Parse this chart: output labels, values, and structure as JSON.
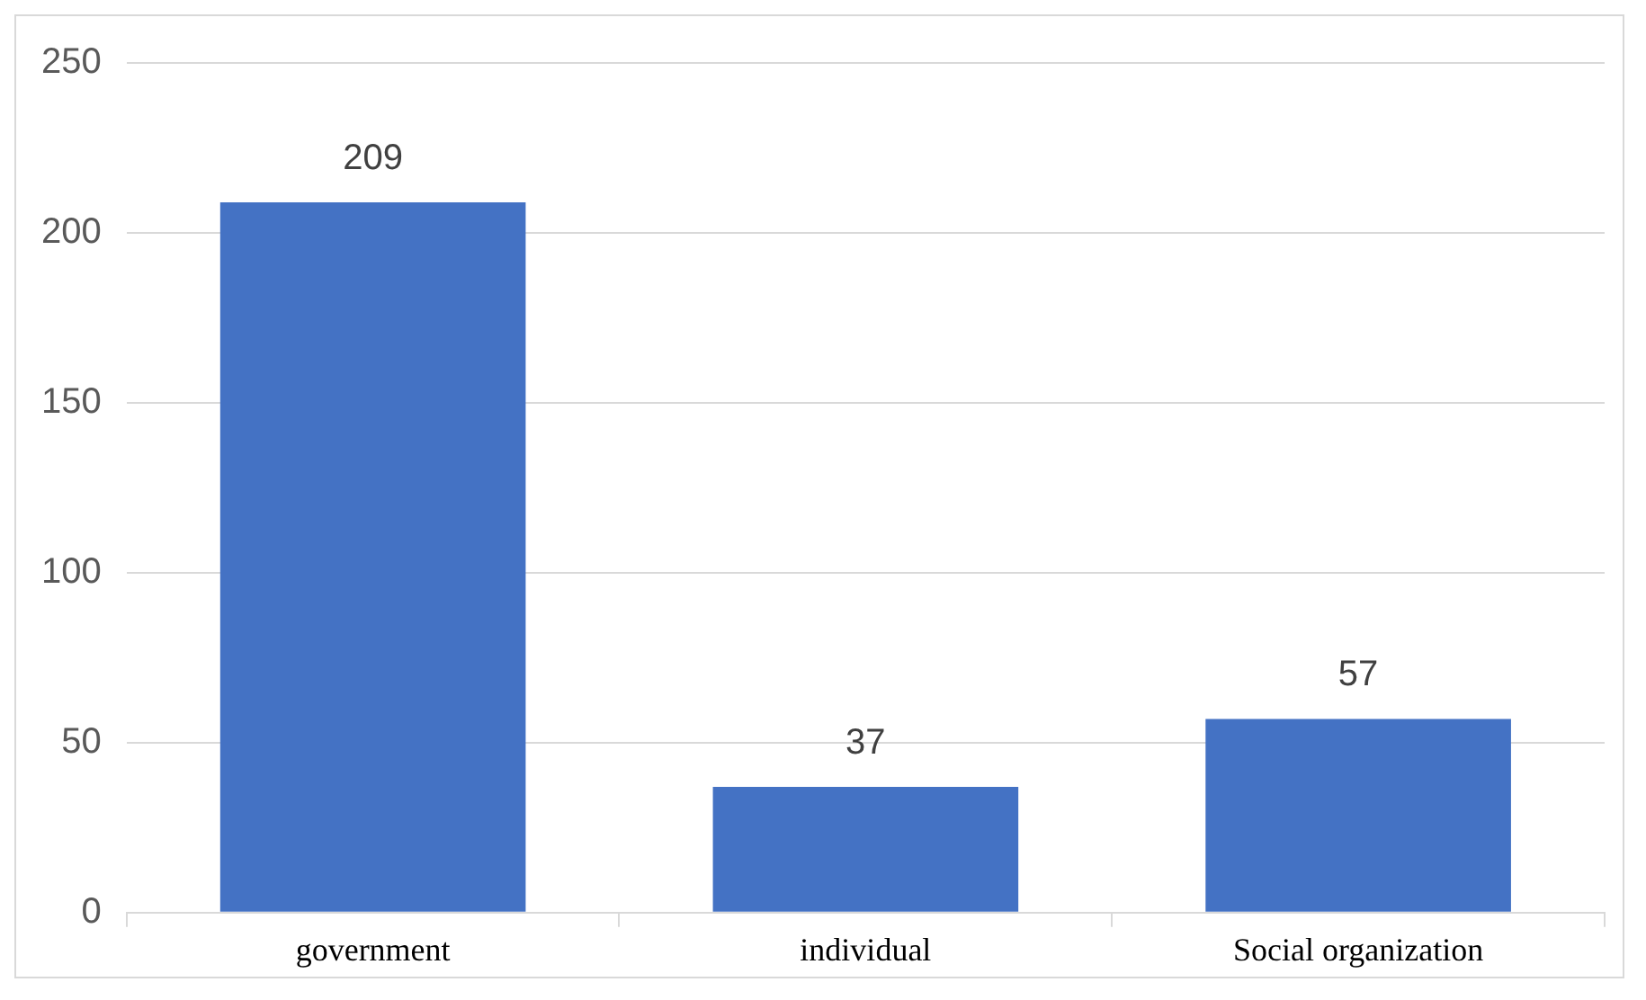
{
  "chart_data": {
    "type": "bar",
    "categories": [
      "government",
      "individual",
      "Social organization"
    ],
    "values": [
      209,
      37,
      57
    ],
    "color": "#4472c4",
    "ylim": [
      0,
      250
    ],
    "yticks": [
      0,
      50,
      100,
      150,
      200,
      250
    ],
    "grid": "y",
    "data_labels": true,
    "legend": false
  }
}
